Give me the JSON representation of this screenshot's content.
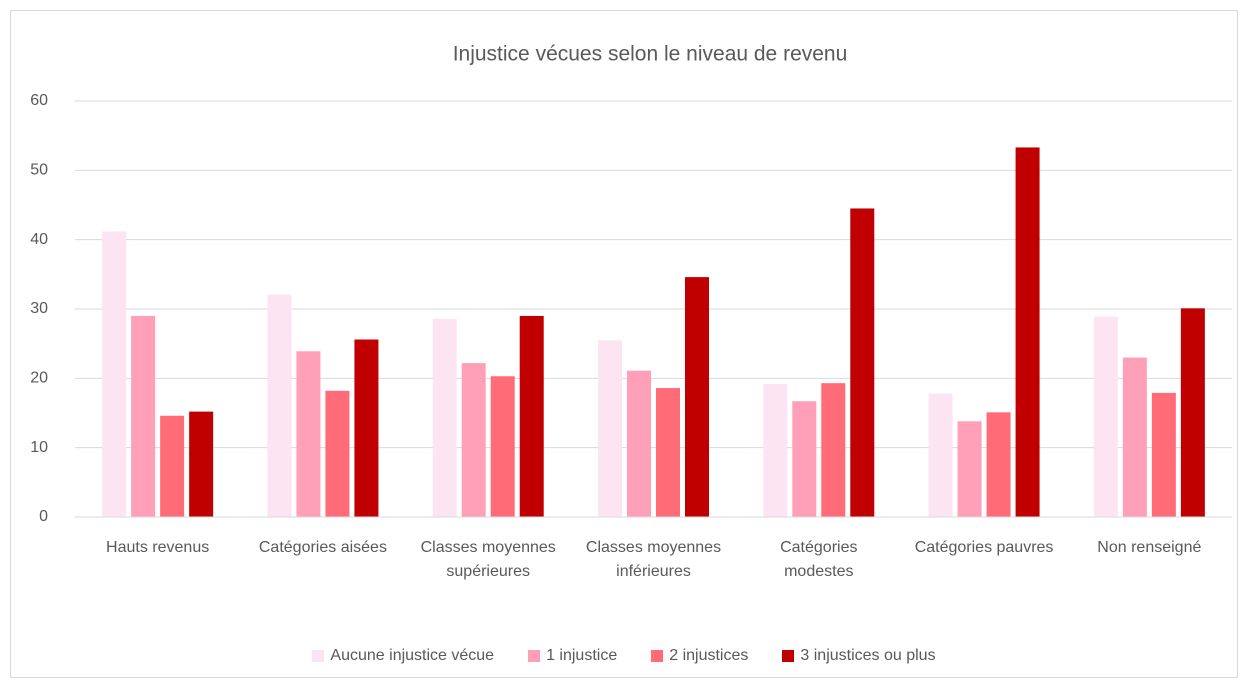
{
  "chart_data": {
    "type": "bar",
    "title": "Injustice vécues selon le niveau de revenu",
    "categories": [
      "Hauts revenus",
      "Catégories aisées",
      "Classes moyennes supérieures",
      "Classes moyennes inférieures",
      "Catégories modestes",
      "Catégories pauvres",
      "Non renseigné"
    ],
    "series": [
      {
        "name": "Aucune injustice vécue",
        "color": "#fde4f2",
        "values": [
          41.2,
          32.1,
          28.6,
          25.5,
          19.2,
          17.8,
          28.9
        ]
      },
      {
        "name": "1 injustice",
        "color": "#ff9fb8",
        "values": [
          29,
          23.9,
          22.2,
          21.1,
          16.7,
          13.8,
          23
        ]
      },
      {
        "name": "2 injustices",
        "color": "#ff6b77",
        "values": [
          14.6,
          18.2,
          20.3,
          18.6,
          19.3,
          15.1,
          17.9
        ]
      },
      {
        "name": "3 injustices ou plus",
        "color": "#c00000",
        "values": [
          15.2,
          25.6,
          29,
          34.6,
          44.5,
          53.3,
          30.1
        ]
      }
    ],
    "ylim": [
      0,
      60
    ],
    "yticks": [
      0,
      10,
      20,
      30,
      40,
      50,
      60
    ],
    "grid": true,
    "legend": "bottom"
  }
}
